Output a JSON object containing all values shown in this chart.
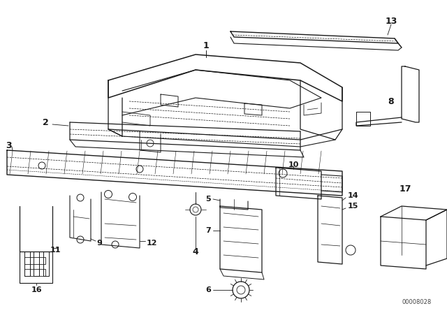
{
  "bg_color": "#ffffff",
  "line_color": "#1a1a1a",
  "fig_width": 6.4,
  "fig_height": 4.48,
  "dpi": 100,
  "watermark": "00008028"
}
